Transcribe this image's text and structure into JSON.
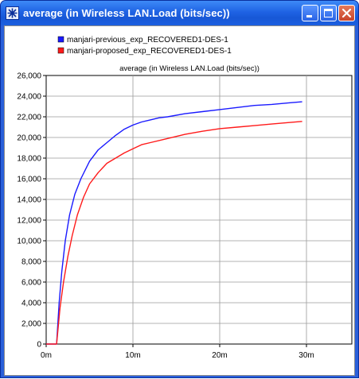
{
  "window": {
    "title": "average (in Wireless LAN.Load (bits/sec))",
    "title_color": "#ffffff",
    "titlebar_color": "#2a5fd9"
  },
  "title_buttons": [
    "minimize-icon",
    "maximize-icon",
    "close-icon"
  ],
  "chart_data": {
    "type": "line",
    "title": "average (in Wireless LAN.Load (bits/sec))",
    "xlabel": "",
    "ylabel": "",
    "xlim": [
      0,
      32
    ],
    "ylim": [
      0,
      26000
    ],
    "x_ticks": [
      0,
      10,
      20,
      30
    ],
    "x_tick_labels": [
      "0m",
      "10m",
      "20m",
      "30m"
    ],
    "y_ticks": [
      0,
      2000,
      4000,
      6000,
      8000,
      10000,
      12000,
      14000,
      16000,
      18000,
      20000,
      22000,
      24000,
      26000
    ],
    "y_tick_labels": [
      "0",
      "2,000",
      "4,000",
      "6,000",
      "8,000",
      "10,000",
      "12,000",
      "14,000",
      "16,000",
      "18,000",
      "20,000",
      "22,000",
      "24,000",
      "26,000"
    ],
    "grid": true,
    "legend_position": "top-left",
    "series": [
      {
        "name": "manjari-previous_exp_RECOVERED1-DES-1",
        "color": "#1a1aff",
        "points": [
          [
            0,
            0
          ],
          [
            1.2,
            0
          ],
          [
            1.5,
            4000
          ],
          [
            1.8,
            7000
          ],
          [
            2.2,
            10000
          ],
          [
            2.7,
            12500
          ],
          [
            3.3,
            14500
          ],
          [
            4,
            16000
          ],
          [
            5,
            17700
          ],
          [
            6,
            18800
          ],
          [
            7,
            19500
          ],
          [
            8,
            20200
          ],
          [
            9,
            20800
          ],
          [
            10,
            21200
          ],
          [
            11,
            21500
          ],
          [
            12,
            21700
          ],
          [
            13,
            21900
          ],
          [
            14,
            22000
          ],
          [
            16,
            22300
          ],
          [
            18,
            22500
          ],
          [
            20,
            22700
          ],
          [
            22,
            22900
          ],
          [
            24,
            23100
          ],
          [
            26,
            23200
          ],
          [
            28,
            23350
          ],
          [
            29.5,
            23450
          ]
        ]
      },
      {
        "name": "manjari-proposed_exp_RECOVERED1-DES-1",
        "color": "#ff1a1a",
        "points": [
          [
            0,
            0
          ],
          [
            1.2,
            0
          ],
          [
            1.6,
            3500
          ],
          [
            2,
            6000
          ],
          [
            2.5,
            8500
          ],
          [
            3,
            10500
          ],
          [
            3.6,
            12500
          ],
          [
            4.3,
            14200
          ],
          [
            5,
            15500
          ],
          [
            6,
            16600
          ],
          [
            7,
            17500
          ],
          [
            8,
            18000
          ],
          [
            9,
            18500
          ],
          [
            10,
            18900
          ],
          [
            11,
            19300
          ],
          [
            12,
            19500
          ],
          [
            14,
            19900
          ],
          [
            16,
            20300
          ],
          [
            18,
            20600
          ],
          [
            20,
            20850
          ],
          [
            22,
            21000
          ],
          [
            24,
            21150
          ],
          [
            26,
            21300
          ],
          [
            28,
            21450
          ],
          [
            29.5,
            21550
          ]
        ]
      }
    ]
  }
}
